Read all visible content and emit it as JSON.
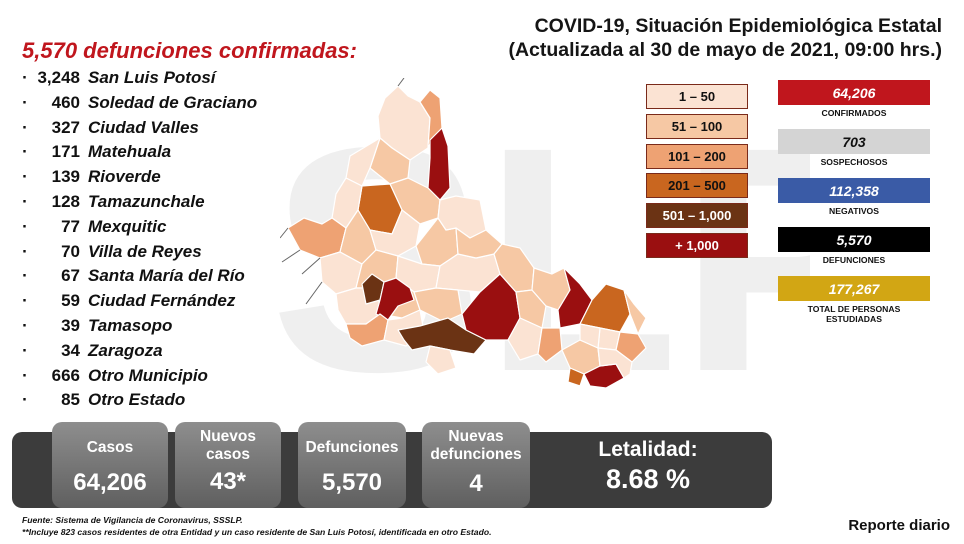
{
  "header": {
    "title_line1": "COVID-19, Situación Epidemiológica Estatal",
    "title_line2": "(Actualizada al 30 de mayo de 2021, 09:00 hrs.)"
  },
  "deaths_heading": "5,570 defunciones confirmadas:",
  "municipalities": [
    {
      "value": "3,248",
      "name": "San Luis Potosí"
    },
    {
      "value": "460",
      "name": "Soledad de Graciano"
    },
    {
      "value": "327",
      "name": "Ciudad Valles"
    },
    {
      "value": "171",
      "name": "Matehuala"
    },
    {
      "value": "139",
      "name": "Rioverde"
    },
    {
      "value": "128",
      "name": "Tamazunchale"
    },
    {
      "value": "77",
      "name": "Mexquitic"
    },
    {
      "value": "70",
      "name": "Villa de Reyes"
    },
    {
      "value": "67",
      "name": "Santa María del Río"
    },
    {
      "value": "59",
      "name": "Ciudad Fernández"
    },
    {
      "value": "39",
      "name": "Tamasopo"
    },
    {
      "value": "34",
      "name": "Zaragoza"
    },
    {
      "value": "666",
      "name": "Otro Municipio"
    },
    {
      "value": "85",
      "name": "Otro Estado"
    }
  ],
  "legend": [
    {
      "label": "1 – 50",
      "color": "#fbe3d3"
    },
    {
      "label": "51 – 100",
      "color": "#f6c8a4"
    },
    {
      "label": "101 – 200",
      "color": "#eea273"
    },
    {
      "label": "201 – 500",
      "color": "#c9661f"
    },
    {
      "label": "501 – 1,000",
      "color": "#6b3314"
    },
    {
      "label": "+ 1,000",
      "color": "#9a0f10"
    }
  ],
  "stats": [
    {
      "value": "64,206",
      "label": "CONFIRMADOS",
      "bg": "#c0161d",
      "fg": "#ffffff"
    },
    {
      "value": "703",
      "label": "SOSPECHOSOS",
      "bg": "#d4d4d4",
      "fg": "#111111"
    },
    {
      "value": "112,358",
      "label": "NEGATIVOS",
      "bg": "#3a5ba6",
      "fg": "#ffffff"
    },
    {
      "value": "5,570",
      "label": "DEFUNCIONES",
      "bg": "#000000",
      "fg": "#ffffff"
    },
    {
      "value": "177,267",
      "label": "TOTAL DE PERSONAS ESTUDIADAS",
      "bg": "#d2a614",
      "fg": "#ffffff"
    }
  ],
  "summary": {
    "casos_label": "Casos",
    "casos_value": "64,206",
    "nuevos_casos_label": "Nuevos casos",
    "nuevos_casos_value": "43*",
    "defunciones_label": "Defunciones",
    "defunciones_value": "5,570",
    "nuevas_defunciones_label": "Nuevas defunciones",
    "nuevas_defunciones_value": "4",
    "letalidad_label": "Letalidad:",
    "letalidad_value": "8.68 %"
  },
  "footnotes": {
    "source": "Fuente: Sistema de Vigilancia de Coronavirus, SSSLP.",
    "note": "**Incluye 823 casos residentes de otra Entidad y un caso residente de San Luis Potosí, identificada en otro Estado."
  },
  "report_label": "Reporte diario"
}
